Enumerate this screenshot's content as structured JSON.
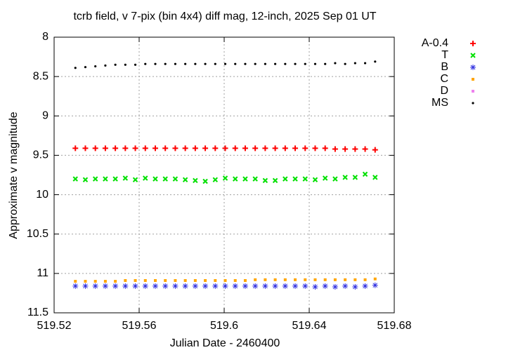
{
  "chart_data": {
    "type": "scatter",
    "title": "tcrb field, v 7-pix (bin 4x4) diff mag, 12-inch, 2025 Sep 01 UT",
    "xlabel": "Julian Date - 2460400",
    "ylabel": "Approximate v magnitude",
    "x": [
      519.53,
      519.5347,
      519.5394,
      519.5441,
      519.5488,
      519.5535,
      519.5582,
      519.5629,
      519.5676,
      519.5723,
      519.577,
      519.5817,
      519.5864,
      519.5911,
      519.5958,
      519.6005,
      519.6052,
      519.6099,
      519.6146,
      519.6193,
      519.624,
      519.6287,
      519.6334,
      519.6381,
      519.6428,
      519.6475,
      519.6522,
      519.6569,
      519.6616,
      519.6663,
      519.671
    ],
    "series": [
      {
        "name": "A-0.4",
        "color": "#ff0000",
        "marker": "plus",
        "values": [
          9.41,
          9.41,
          9.41,
          9.41,
          9.41,
          9.41,
          9.41,
          9.41,
          9.41,
          9.41,
          9.41,
          9.41,
          9.41,
          9.41,
          9.41,
          9.41,
          9.41,
          9.41,
          9.41,
          9.41,
          9.41,
          9.41,
          9.41,
          9.41,
          9.41,
          9.41,
          9.42,
          9.42,
          9.42,
          9.42,
          9.43
        ]
      },
      {
        "name": "T",
        "color": "#00e000",
        "marker": "cross",
        "values": [
          9.8,
          9.81,
          9.8,
          9.8,
          9.8,
          9.79,
          9.81,
          9.79,
          9.8,
          9.8,
          9.8,
          9.81,
          9.82,
          9.83,
          9.81,
          9.79,
          9.8,
          9.8,
          9.8,
          9.82,
          9.82,
          9.8,
          9.8,
          9.8,
          9.81,
          9.79,
          9.8,
          9.78,
          9.78,
          9.74,
          9.78
        ]
      },
      {
        "name": "B",
        "color": "#3030e0",
        "marker": "star",
        "values": [
          11.16,
          11.16,
          11.16,
          11.16,
          11.16,
          11.16,
          11.16,
          11.16,
          11.16,
          11.16,
          11.16,
          11.16,
          11.16,
          11.16,
          11.16,
          11.16,
          11.16,
          11.16,
          11.16,
          11.16,
          11.16,
          11.16,
          11.16,
          11.16,
          11.17,
          11.16,
          11.17,
          11.16,
          11.17,
          11.16,
          11.15
        ]
      },
      {
        "name": "C",
        "color": "#ffa500",
        "marker": "square",
        "values": [
          11.1,
          11.1,
          11.1,
          11.1,
          11.1,
          11.09,
          11.09,
          11.09,
          11.09,
          11.09,
          11.09,
          11.09,
          11.09,
          11.09,
          11.09,
          11.09,
          11.09,
          11.09,
          11.08,
          11.08,
          11.08,
          11.08,
          11.08,
          11.08,
          11.08,
          11.08,
          11.08,
          11.08,
          11.08,
          11.08,
          11.07
        ]
      },
      {
        "name": "D",
        "color": "#ee82ee",
        "marker": "square",
        "values": [
          null,
          null,
          null,
          null,
          null,
          null,
          null,
          null,
          null,
          null,
          null,
          null,
          null,
          null,
          null,
          null,
          null,
          null,
          null,
          null,
          null,
          null,
          null,
          null,
          null,
          null,
          null,
          null,
          null,
          null,
          null
        ]
      },
      {
        "name": "MS",
        "color": "#000000",
        "marker": "dot",
        "values": [
          8.39,
          8.38,
          8.37,
          8.36,
          8.35,
          8.35,
          8.35,
          8.34,
          8.34,
          8.34,
          8.34,
          8.34,
          8.34,
          8.34,
          8.34,
          8.34,
          8.34,
          8.34,
          8.34,
          8.34,
          8.34,
          8.34,
          8.34,
          8.34,
          8.34,
          8.34,
          8.33,
          8.34,
          8.33,
          8.33,
          8.31
        ]
      }
    ],
    "xlim": [
      519.52,
      519.68
    ],
    "xticks": [
      519.52,
      519.56,
      519.6,
      519.64,
      519.68
    ],
    "ylim": [
      8,
      11.5
    ],
    "yticks": [
      8,
      8.5,
      9,
      9.5,
      10,
      10.5,
      11,
      11.5
    ],
    "y_reversed": true,
    "grid": true,
    "legend": "outside-right"
  }
}
